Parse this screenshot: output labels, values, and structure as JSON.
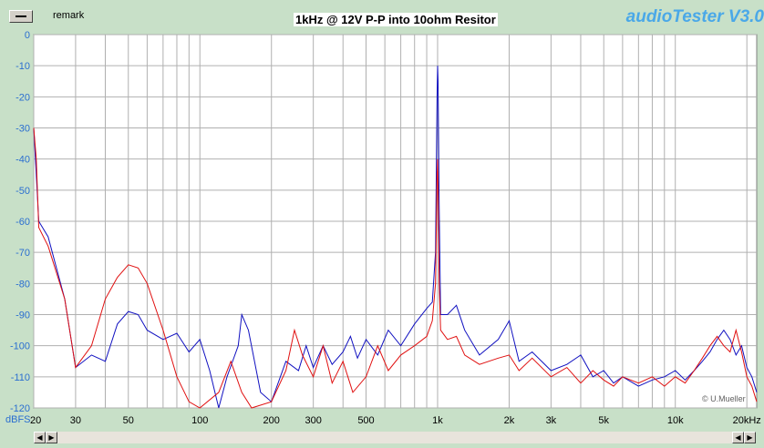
{
  "window": {
    "remark_label": "remark",
    "title": "1kHz @ 12V P-P into 10ohm Resitor",
    "brand": "audioTester V3.0",
    "credit": "© U.Mueller",
    "y_unit": "dBFS",
    "x_unit": "Hz"
  },
  "colors": {
    "background": "#c8e0c8",
    "plot_background": "#ffffff",
    "grid": "#b0b0b0",
    "channel_1": "#1010c0",
    "channel_2": "#e01010",
    "brand": "#4aa8e8"
  },
  "chart_data": {
    "type": "line",
    "title": "1kHz @ 12V P-P into 10ohm Resitor",
    "xlabel": "",
    "ylabel": "dBFS",
    "x_scale": "log",
    "xlim": [
      20,
      22000
    ],
    "ylim": [
      -120,
      0
    ],
    "grid": true,
    "y_ticks": [
      "0",
      "-10",
      "-20",
      "-30",
      "-40",
      "-50",
      "-60",
      "-70",
      "-80",
      "-90",
      "-100",
      "-110",
      "-120"
    ],
    "x_ticks": [
      {
        "v": 20,
        "label": "20"
      },
      {
        "v": 30,
        "label": "30"
      },
      {
        "v": 50,
        "label": "50"
      },
      {
        "v": 100,
        "label": "100"
      },
      {
        "v": 200,
        "label": "200"
      },
      {
        "v": 300,
        "label": "300"
      },
      {
        "v": 500,
        "label": "500"
      },
      {
        "v": 1000,
        "label": "1k"
      },
      {
        "v": 2000,
        "label": "2k"
      },
      {
        "v": 3000,
        "label": "3k"
      },
      {
        "v": 5000,
        "label": "5k"
      },
      {
        "v": 10000,
        "label": "10k"
      },
      {
        "v": 20000,
        "label": "20kHz"
      }
    ],
    "series": [
      {
        "color": "#1010c0",
        "points": [
          [
            20,
            -30
          ],
          [
            20.5,
            -45
          ],
          [
            21,
            -60
          ],
          [
            23,
            -65
          ],
          [
            27,
            -85
          ],
          [
            30,
            -107
          ],
          [
            35,
            -103
          ],
          [
            40,
            -105
          ],
          [
            45,
            -93
          ],
          [
            50,
            -89
          ],
          [
            55,
            -90
          ],
          [
            60,
            -95
          ],
          [
            70,
            -98
          ],
          [
            80,
            -96
          ],
          [
            90,
            -102
          ],
          [
            100,
            -98
          ],
          [
            110,
            -108
          ],
          [
            120,
            -120
          ],
          [
            130,
            -110
          ],
          [
            145,
            -100
          ],
          [
            150,
            -90
          ],
          [
            160,
            -95
          ],
          [
            180,
            -115
          ],
          [
            200,
            -118
          ],
          [
            230,
            -105
          ],
          [
            260,
            -108
          ],
          [
            280,
            -100
          ],
          [
            300,
            -107
          ],
          [
            330,
            -100
          ],
          [
            360,
            -106
          ],
          [
            400,
            -102
          ],
          [
            430,
            -97
          ],
          [
            460,
            -104
          ],
          [
            500,
            -98
          ],
          [
            560,
            -103
          ],
          [
            620,
            -95
          ],
          [
            700,
            -100
          ],
          [
            800,
            -93
          ],
          [
            900,
            -88
          ],
          [
            950,
            -86
          ],
          [
            980,
            -70
          ],
          [
            995,
            -20
          ],
          [
            1000,
            -10
          ],
          [
            1005,
            -15
          ],
          [
            1015,
            -55
          ],
          [
            1030,
            -90
          ],
          [
            1100,
            -90
          ],
          [
            1200,
            -87
          ],
          [
            1300,
            -95
          ],
          [
            1500,
            -103
          ],
          [
            1800,
            -98
          ],
          [
            2000,
            -92
          ],
          [
            2200,
            -105
          ],
          [
            2500,
            -102
          ],
          [
            3000,
            -108
          ],
          [
            3500,
            -106
          ],
          [
            4000,
            -103
          ],
          [
            4500,
            -110
          ],
          [
            5000,
            -108
          ],
          [
            5500,
            -112
          ],
          [
            6000,
            -110
          ],
          [
            7000,
            -113
          ],
          [
            8000,
            -111
          ],
          [
            9000,
            -110
          ],
          [
            10000,
            -108
          ],
          [
            11000,
            -111
          ],
          [
            12000,
            -108
          ],
          [
            13000,
            -105
          ],
          [
            14000,
            -102
          ],
          [
            15000,
            -98
          ],
          [
            16000,
            -95
          ],
          [
            17000,
            -98
          ],
          [
            18000,
            -103
          ],
          [
            19000,
            -100
          ],
          [
            20000,
            -107
          ],
          [
            21000,
            -110
          ],
          [
            22000,
            -115
          ]
        ]
      },
      {
        "color": "#e01010",
        "points": [
          [
            20,
            -30
          ],
          [
            20.5,
            -40
          ],
          [
            21,
            -62
          ],
          [
            23,
            -68
          ],
          [
            27,
            -85
          ],
          [
            30,
            -107
          ],
          [
            35,
            -100
          ],
          [
            40,
            -85
          ],
          [
            45,
            -78
          ],
          [
            50,
            -74
          ],
          [
            55,
            -75
          ],
          [
            60,
            -80
          ],
          [
            70,
            -95
          ],
          [
            80,
            -110
          ],
          [
            90,
            -118
          ],
          [
            100,
            -120
          ],
          [
            120,
            -115
          ],
          [
            135,
            -105
          ],
          [
            150,
            -115
          ],
          [
            165,
            -120
          ],
          [
            200,
            -118
          ],
          [
            230,
            -108
          ],
          [
            250,
            -95
          ],
          [
            270,
            -103
          ],
          [
            300,
            -110
          ],
          [
            330,
            -100
          ],
          [
            360,
            -112
          ],
          [
            400,
            -105
          ],
          [
            440,
            -115
          ],
          [
            500,
            -110
          ],
          [
            560,
            -100
          ],
          [
            620,
            -108
          ],
          [
            700,
            -103
          ],
          [
            800,
            -100
          ],
          [
            900,
            -97
          ],
          [
            950,
            -92
          ],
          [
            980,
            -80
          ],
          [
            995,
            -45
          ],
          [
            1000,
            -40
          ],
          [
            1005,
            -50
          ],
          [
            1015,
            -80
          ],
          [
            1030,
            -95
          ],
          [
            1100,
            -98
          ],
          [
            1200,
            -97
          ],
          [
            1300,
            -103
          ],
          [
            1500,
            -106
          ],
          [
            1800,
            -104
          ],
          [
            2000,
            -103
          ],
          [
            2200,
            -108
          ],
          [
            2500,
            -104
          ],
          [
            3000,
            -110
          ],
          [
            3500,
            -107
          ],
          [
            4000,
            -112
          ],
          [
            4500,
            -108
          ],
          [
            5000,
            -111
          ],
          [
            5500,
            -113
          ],
          [
            6000,
            -110
          ],
          [
            7000,
            -112
          ],
          [
            8000,
            -110
          ],
          [
            9000,
            -113
          ],
          [
            10000,
            -110
          ],
          [
            11000,
            -112
          ],
          [
            12000,
            -108
          ],
          [
            13000,
            -104
          ],
          [
            14000,
            -100
          ],
          [
            15000,
            -97
          ],
          [
            16000,
            -100
          ],
          [
            17000,
            -102
          ],
          [
            18000,
            -95
          ],
          [
            19000,
            -102
          ],
          [
            20000,
            -110
          ],
          [
            21000,
            -113
          ],
          [
            22000,
            -118
          ]
        ]
      }
    ]
  }
}
